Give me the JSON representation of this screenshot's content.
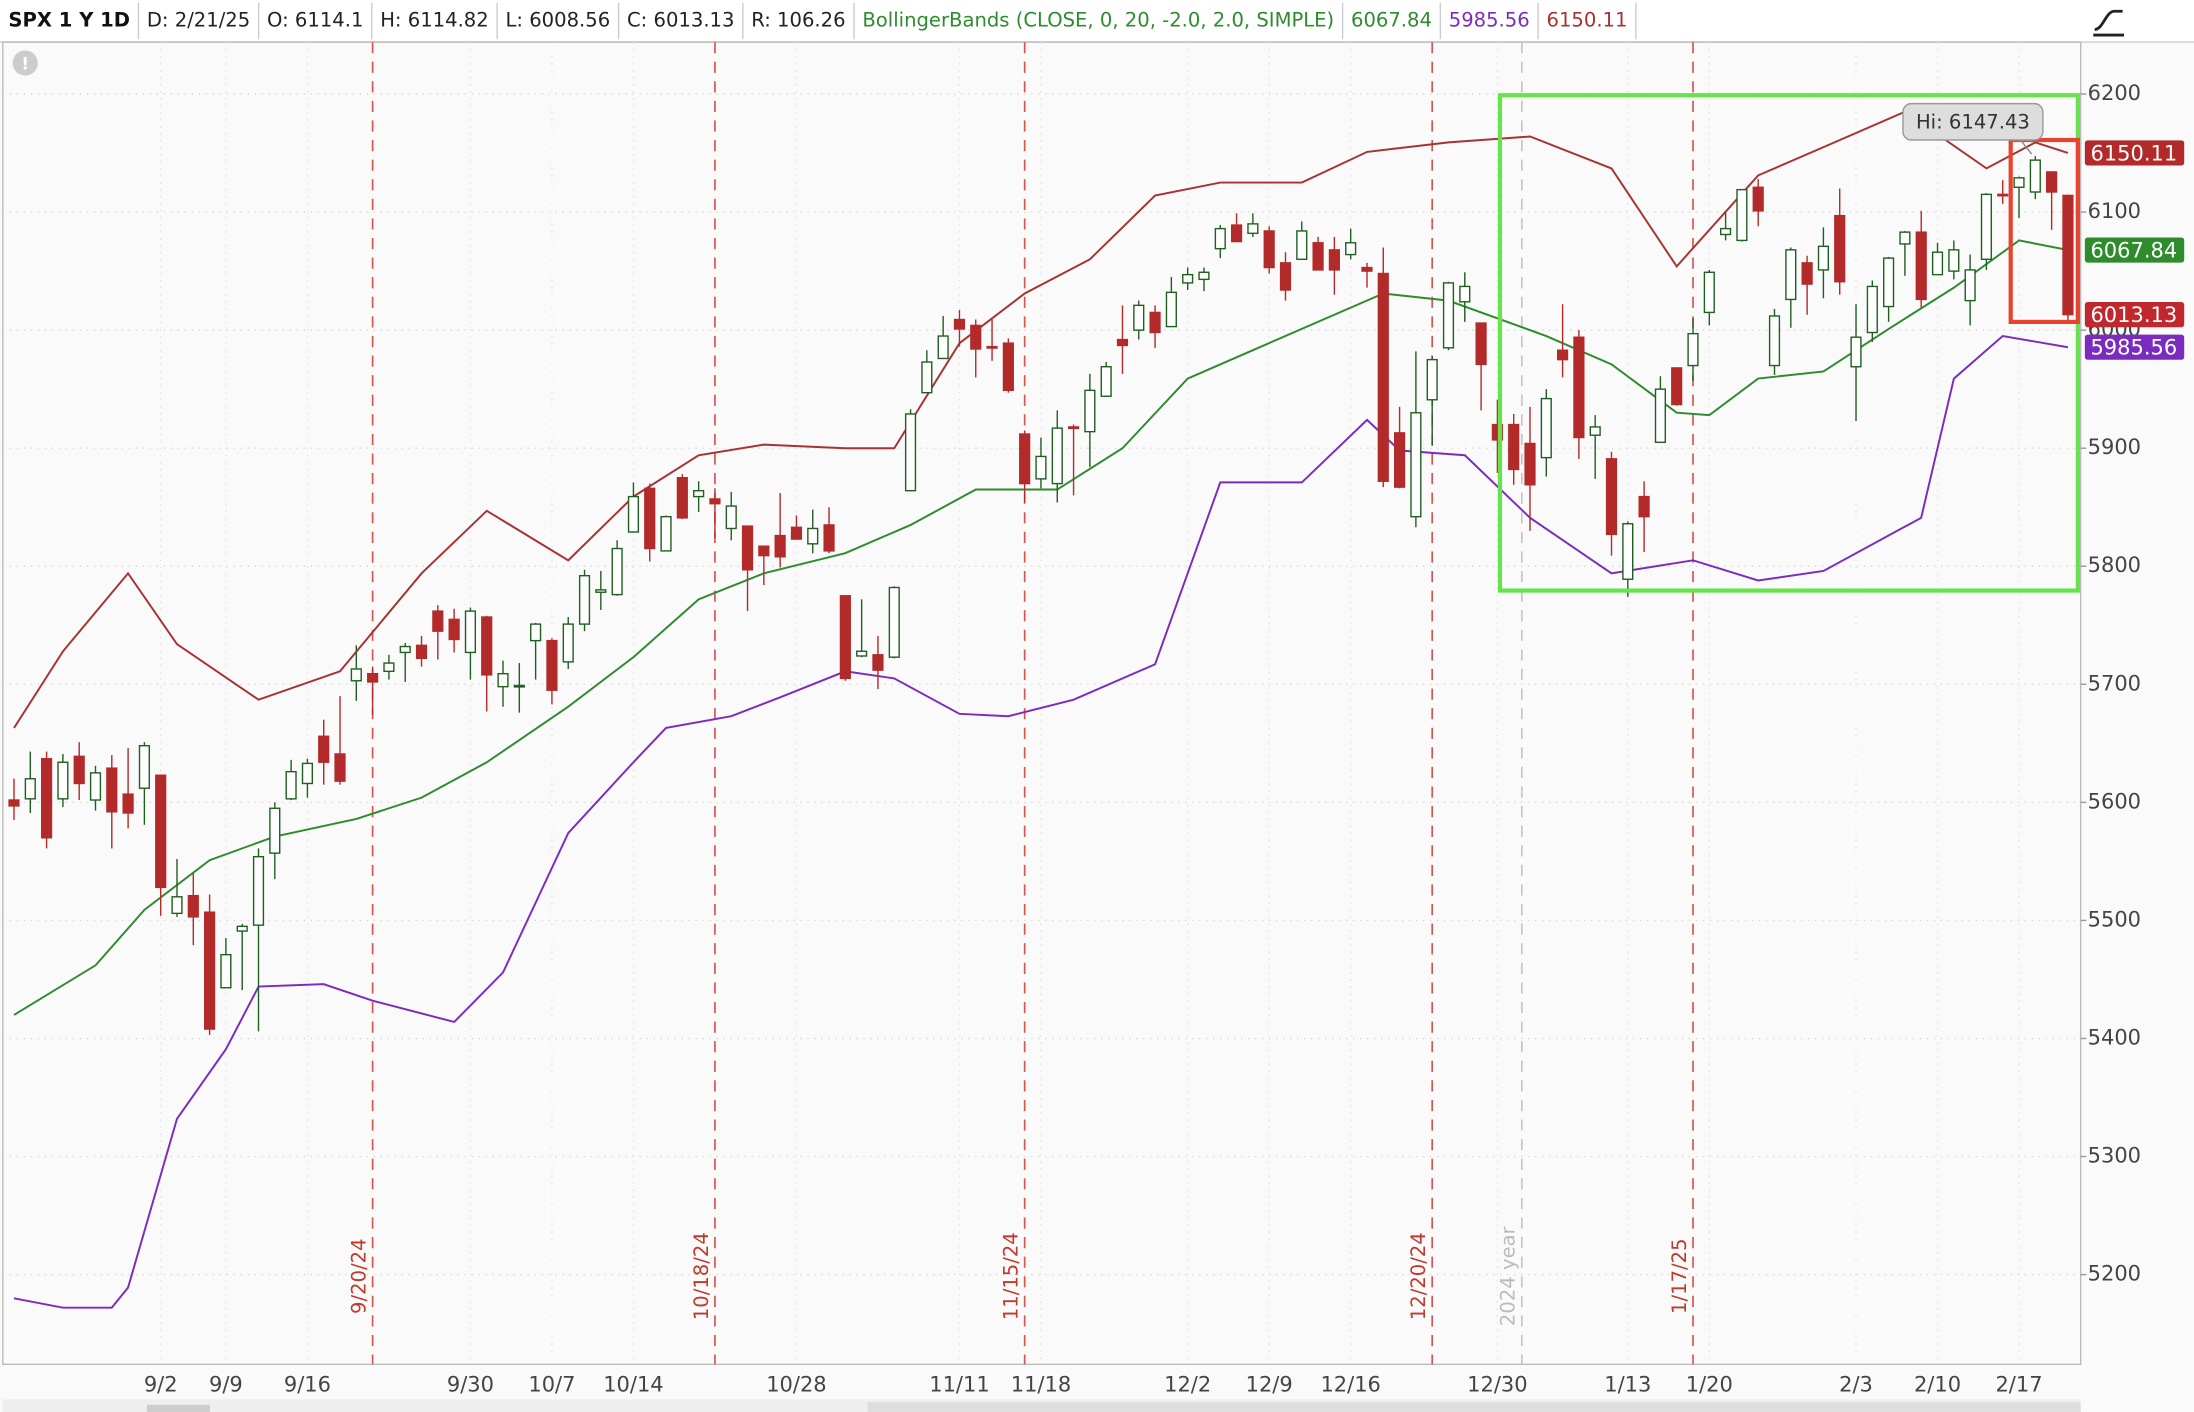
{
  "chart_data": {
    "type": "candlestick",
    "header": [
      {
        "text": "SPX 1 Y 1D",
        "color": "#111111"
      },
      {
        "text": "D: 2/21/25",
        "color": "#222222"
      },
      {
        "text": "O: 6114.1",
        "color": "#222222"
      },
      {
        "text": "H: 6114.82",
        "color": "#222222"
      },
      {
        "text": "L: 6008.56",
        "color": "#222222"
      },
      {
        "text": "C: 6013.13",
        "color": "#222222"
      },
      {
        "text": "R: 106.26",
        "color": "#222222"
      },
      {
        "text": "BollingerBands (CLOSE, 0, 20, -2.0, 2.0, SIMPLE)",
        "color": "#2e8b2e"
      },
      {
        "text": "6067.84",
        "color": "#2e8b2e"
      },
      {
        "text": "5985.56",
        "color": "#7b2cbf"
      },
      {
        "text": "6150.11",
        "color": "#a83232"
      }
    ],
    "categories": [
      null,
      null,
      null,
      null,
      null,
      null,
      null,
      null,
      null,
      "9/2",
      null,
      null,
      null,
      "9/9",
      null,
      null,
      null,
      null,
      "9/16",
      null,
      null,
      null,
      null,
      null,
      null,
      null,
      null,
      null,
      "9/30",
      null,
      null,
      null,
      null,
      "10/7",
      null,
      null,
      null,
      null,
      "10/14",
      null,
      null,
      null,
      null,
      null,
      null,
      null,
      null,
      null,
      "10/28",
      null,
      null,
      null,
      null,
      null,
      null,
      null,
      null,
      null,
      "11/11",
      null,
      null,
      null,
      null,
      "11/18",
      null,
      null,
      null,
      null,
      null,
      null,
      null,
      null,
      "12/2",
      null,
      null,
      null,
      null,
      "12/9",
      null,
      null,
      null,
      null,
      "12/16",
      null,
      null,
      null,
      null,
      null,
      null,
      null,
      null,
      "12/30",
      null,
      null,
      null,
      null,
      null,
      null,
      null,
      "1/13",
      null,
      null,
      null,
      null,
      "1/20",
      null,
      null,
      null,
      null,
      null,
      null,
      null,
      null,
      "2/3",
      null,
      null,
      null,
      null,
      "2/10",
      null,
      null,
      null,
      null,
      "2/17",
      null,
      null,
      null
    ],
    "candles": {
      "name": "SPX",
      "up_color": "#1f5f1f",
      "down_color": "#b22a2a",
      "ohlc": [
        [
          5602,
          5620,
          5585,
          5597
        ],
        [
          5603,
          5643,
          5591,
          5620
        ],
        [
          5637,
          5643,
          5561,
          5570
        ],
        [
          5603,
          5641,
          5596,
          5634
        ],
        [
          5639,
          5651,
          5602,
          5616
        ],
        [
          5602,
          5631,
          5593,
          5625
        ],
        [
          5629,
          5640,
          5561,
          5592
        ],
        [
          5607,
          5646,
          5578,
          5591
        ],
        [
          5612,
          5651,
          5581,
          5648
        ],
        [
          5623,
          5623,
          5504,
          5528
        ],
        [
          5506,
          5552,
          5503,
          5520
        ],
        [
          5521,
          5540,
          5479,
          5503
        ],
        [
          5507,
          5522,
          5403,
          5408
        ],
        [
          5443,
          5485,
          5443,
          5471
        ],
        [
          5491,
          5497,
          5441,
          5495
        ],
        [
          5496,
          5561,
          5406,
          5554
        ],
        [
          5557,
          5600,
          5535,
          5595
        ],
        [
          5603,
          5636,
          5602,
          5626
        ],
        [
          5616,
          5637,
          5604,
          5633
        ],
        [
          5656,
          5670,
          5615,
          5634
        ],
        [
          5641,
          5690,
          5615,
          5618
        ],
        [
          5703,
          5733,
          5686,
          5713
        ],
        [
          5709,
          5715,
          5674,
          5702
        ],
        [
          5711,
          5725,
          5704,
          5718
        ],
        [
          5727,
          5735,
          5702,
          5732
        ],
        [
          5733,
          5741,
          5715,
          5722
        ],
        [
          5762,
          5767,
          5721,
          5745
        ],
        [
          5755,
          5764,
          5727,
          5738
        ],
        [
          5727,
          5765,
          5704,
          5762
        ],
        [
          5757,
          5758,
          5677,
          5708
        ],
        [
          5698,
          5720,
          5681,
          5709
        ],
        [
          5698,
          5718,
          5676,
          5699
        ],
        [
          5737,
          5752,
          5704,
          5751
        ],
        [
          5737,
          5739,
          5683,
          5695
        ],
        [
          5719,
          5757,
          5713,
          5751
        ],
        [
          5751,
          5797,
          5745,
          5792
        ],
        [
          5778,
          5796,
          5763,
          5780
        ],
        [
          5776,
          5822,
          5775,
          5815
        ],
        [
          5829,
          5871,
          5829,
          5859
        ],
        [
          5866,
          5870,
          5804,
          5815
        ],
        [
          5813,
          5843,
          5813,
          5842
        ],
        [
          5875,
          5878,
          5840,
          5841
        ],
        [
          5859,
          5872,
          5846,
          5864
        ],
        [
          5857,
          5866,
          5824,
          5853
        ],
        [
          5832,
          5863,
          5822,
          5851
        ],
        [
          5834,
          5834,
          5762,
          5797
        ],
        [
          5817,
          5817,
          5784,
          5809
        ],
        [
          5826,
          5862,
          5799,
          5808
        ],
        [
          5833,
          5843,
          5823,
          5823
        ],
        [
          5819,
          5848,
          5811,
          5832
        ],
        [
          5835,
          5850,
          5811,
          5813
        ],
        [
          5775,
          5775,
          5703,
          5705
        ],
        [
          5724,
          5772,
          5723,
          5728
        ],
        [
          5725,
          5741,
          5696,
          5712
        ],
        [
          5723,
          5783,
          5722,
          5782
        ],
        [
          5864,
          5933,
          5864,
          5929
        ],
        [
          5947,
          5983,
          5947,
          5973
        ],
        [
          5976,
          6012,
          5976,
          5995
        ],
        [
          6009,
          6017,
          5986,
          6001
        ],
        [
          6004,
          6009,
          5960,
          5984
        ],
        [
          5986,
          6009,
          5974,
          5985
        ],
        [
          5989,
          5993,
          5947,
          5949
        ],
        [
          5912,
          5915,
          5854,
          5870
        ],
        [
          5874,
          5909,
          5866,
          5893
        ],
        [
          5870,
          5932,
          5854,
          5917
        ],
        [
          5918,
          5920,
          5860,
          5917
        ],
        [
          5914,
          5963,
          5884,
          5949
        ],
        [
          5944,
          5973,
          5944,
          5969
        ],
        [
          5992,
          6021,
          5963,
          5987
        ],
        [
          6000,
          6025,
          5992,
          6021
        ],
        [
          6015,
          6021,
          5985,
          5998
        ],
        [
          6003,
          6045,
          6003,
          6032
        ],
        [
          6040,
          6053,
          6034,
          6047
        ],
        [
          6043,
          6053,
          6033,
          6049
        ],
        [
          6069,
          6089,
          6061,
          6086
        ],
        [
          6089,
          6099,
          6075,
          6075
        ],
        [
          6082,
          6099,
          6079,
          6090
        ],
        [
          6084,
          6088,
          6048,
          6053
        ],
        [
          6057,
          6066,
          6025,
          6034
        ],
        [
          6060,
          6092,
          6060,
          6084
        ],
        [
          6074,
          6079,
          6051,
          6051
        ],
        [
          6068,
          6079,
          6030,
          6051
        ],
        [
          6064,
          6086,
          6060,
          6074
        ],
        [
          6053,
          6057,
          6036,
          6050
        ],
        [
          6048,
          6070,
          5867,
          5872
        ],
        [
          5913,
          5935,
          5866,
          5867
        ],
        [
          5842,
          5982,
          5833,
          5930
        ],
        [
          5941,
          5978,
          5902,
          5975
        ],
        [
          5985,
          6041,
          5983,
          6040
        ],
        [
          6024,
          6049,
          6007,
          6037
        ],
        [
          6006,
          6006,
          5932,
          5971
        ],
        [
          5920,
          5941,
          5879,
          5907
        ],
        [
          5920,
          5929,
          5869,
          5882
        ],
        [
          5904,
          5935,
          5830,
          5869
        ],
        [
          5892,
          5950,
          5876,
          5942
        ],
        [
          5983,
          6022,
          5960,
          5975
        ],
        [
          5994,
          6000,
          5891,
          5909
        ],
        [
          5911,
          5928,
          5874,
          5918
        ],
        [
          5891,
          5897,
          5809,
          5827
        ],
        [
          5789,
          5838,
          5774,
          5836
        ],
        [
          5859,
          5872,
          5812,
          5842
        ],
        [
          5905,
          5961,
          5905,
          5950
        ],
        [
          5968,
          5968,
          5936,
          5937
        ],
        [
          5970,
          6010,
          5957,
          5997
        ],
        [
          6015,
          6051,
          6004,
          6049
        ],
        [
          6081,
          6100,
          6076,
          6086
        ],
        [
          6076,
          6119,
          6075,
          6119
        ],
        [
          6121,
          6128,
          6088,
          6101
        ],
        [
          5970,
          6018,
          5962,
          6012
        ],
        [
          6026,
          6070,
          6002,
          6068
        ],
        [
          6057,
          6063,
          6013,
          6039
        ],
        [
          6051,
          6087,
          6027,
          6071
        ],
        [
          6097,
          6120,
          6030,
          6041
        ],
        [
          5969,
          6022,
          5923,
          5994
        ],
        [
          5998,
          6042,
          5990,
          6037
        ],
        [
          6020,
          6062,
          6007,
          6061
        ],
        [
          6073,
          6084,
          6046,
          6083
        ],
        [
          6083,
          6101,
          6019,
          6026
        ],
        [
          6047,
          6074,
          6047,
          6066
        ],
        [
          6050,
          6076,
          6043,
          6068
        ],
        [
          6025,
          6064,
          6004,
          6051
        ],
        [
          6060,
          6116,
          6051,
          6115
        ],
        [
          6115,
          6127,
          6107,
          6114
        ],
        [
          6121,
          6130,
          6095,
          6129
        ],
        [
          6117,
          6147.43,
          6111,
          6144
        ],
        [
          6134,
          6134,
          6085,
          6117
        ],
        [
          6114.1,
          6114.82,
          6008.56,
          6013.13
        ]
      ]
    },
    "series": [
      {
        "name": "Upper",
        "color": "#a83232",
        "x": [
          0,
          3,
          7,
          10,
          15,
          20,
          25,
          29,
          34,
          38,
          42,
          46,
          51,
          54,
          58,
          62,
          66,
          70,
          74,
          79,
          83,
          88,
          93,
          98,
          102,
          107,
          111,
          116,
          121,
          124,
          126
        ],
        "values": [
          5663,
          5728,
          5794,
          5734,
          5687,
          5711,
          5794,
          5847,
          5805,
          5859,
          5894,
          5903,
          5900,
          5900,
          5989,
          6031,
          6060,
          6114,
          6125,
          6125,
          6151,
          6159,
          6164,
          6137,
          6054,
          6131,
          6155,
          6185,
          6137,
          6159,
          6150.11
        ]
      },
      {
        "name": "Middle",
        "color": "#2e8b2e",
        "x": [
          0,
          5,
          8,
          12,
          16,
          21,
          25,
          29,
          34,
          38,
          42,
          46,
          51,
          55,
          59,
          64,
          68,
          72,
          76,
          81,
          84,
          88,
          94,
          98,
          102,
          104,
          107,
          111,
          115,
          119,
          123,
          126
        ],
        "values": [
          5420,
          5462,
          5509,
          5551,
          5571,
          5586,
          5604,
          5634,
          5681,
          5723,
          5772,
          5794,
          5811,
          5835,
          5865,
          5865,
          5900,
          5959,
          5983,
          6013,
          6031,
          6025,
          5995,
          5971,
          5930,
          5928,
          5959,
          5965,
          6001,
          6036,
          6076,
          6067.84
        ]
      },
      {
        "name": "Lower",
        "color": "#7b2cbf",
        "x": [
          0,
          3,
          6,
          7,
          10,
          13,
          15,
          19,
          22,
          27,
          30,
          34,
          38,
          40,
          44,
          47,
          51,
          54,
          58,
          61,
          65,
          70,
          74,
          79,
          83,
          85,
          89,
          93,
          98,
          103,
          107,
          111,
          117,
          119,
          122,
          126
        ],
        "values": [
          5180,
          5172,
          5172,
          5189,
          5332,
          5391,
          5444,
          5446,
          5432,
          5414,
          5456,
          5574,
          5634,
          5663,
          5673,
          5689,
          5711,
          5705,
          5675,
          5673,
          5687,
          5717,
          5871,
          5871,
          5924,
          5898,
          5894,
          5841,
          5794,
          5805,
          5788,
          5796,
          5841,
          5959,
          5995,
          5985.56
        ]
      }
    ],
    "ylim": [
      5124,
      6244
    ],
    "yticks": [
      5200,
      5300,
      5400,
      5500,
      5600,
      5700,
      5800,
      5900,
      6000,
      6100,
      6200
    ],
    "grid": true,
    "price_badges": [
      {
        "value": 6150.11,
        "color": "#b22a2a"
      },
      {
        "value": 6067.84,
        "color": "#2e8b2e"
      },
      {
        "value": 6013.13,
        "color": "#c0282d"
      },
      {
        "value": 5985.56,
        "color": "#7b2cbf"
      }
    ],
    "events": [
      "9/20/24",
      "10/18/24",
      "11/15/24",
      "12/20/24",
      "1/17/25"
    ],
    "year_marker": "2024 year",
    "hi_label": "Hi: 6147.43"
  }
}
